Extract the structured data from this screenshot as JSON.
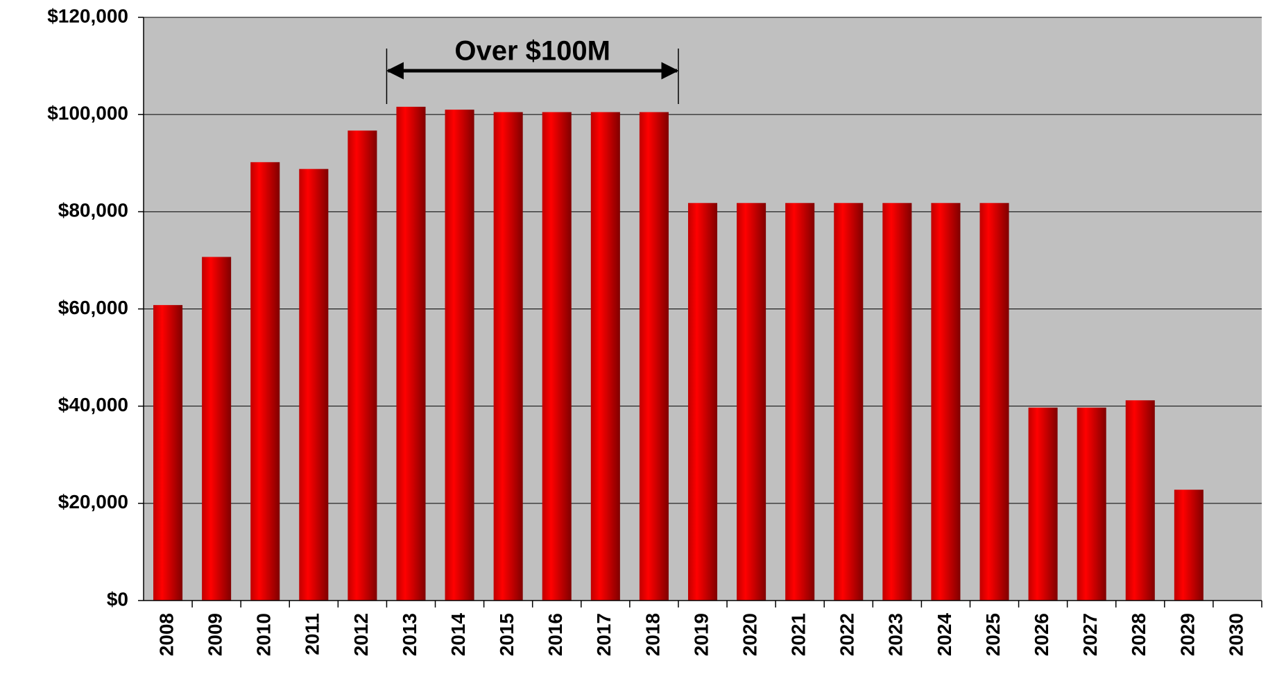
{
  "chart_data": {
    "type": "bar",
    "categories": [
      "2008",
      "2009",
      "2010",
      "2011",
      "2012",
      "2013",
      "2014",
      "2015",
      "2016",
      "2017",
      "2018",
      "2019",
      "2020",
      "2021",
      "2022",
      "2023",
      "2024",
      "2025",
      "2026",
      "2027",
      "2028",
      "2029",
      "2030"
    ],
    "values": [
      60800,
      70700,
      90200,
      88800,
      96700,
      101600,
      101000,
      100500,
      100500,
      100500,
      100500,
      81800,
      81800,
      81800,
      81800,
      81800,
      81800,
      81800,
      39700,
      39700,
      41200,
      22800,
      null
    ],
    "color": "#ff0000",
    "ylim": [
      0,
      120000
    ],
    "yticks": [
      {
        "value": 0,
        "label": "$0"
      },
      {
        "value": 20000,
        "label": "$20,000"
      },
      {
        "value": 40000,
        "label": "$40,000"
      },
      {
        "value": 60000,
        "label": "$60,000"
      },
      {
        "value": 80000,
        "label": "$80,000"
      },
      {
        "value": 100000,
        "label": "$100,000"
      },
      {
        "value": 120000,
        "label": "$120,000"
      }
    ],
    "grid": true,
    "annotation": {
      "text": "Over $100M"
    }
  }
}
